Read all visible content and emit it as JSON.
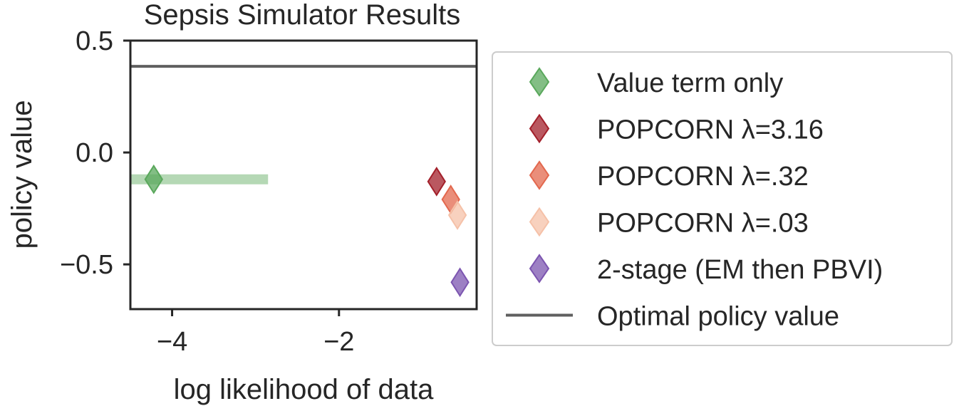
{
  "chart_data": {
    "type": "scatter",
    "title": "Sepsis Simulator Results",
    "xlabel": "log likelihood of data",
    "ylabel": "policy value",
    "xlim": [
      -4.5,
      -0.35
    ],
    "ylim": [
      -0.7,
      0.5
    ],
    "xticks": [
      {
        "value": -4,
        "label": "−4"
      },
      {
        "value": -2,
        "label": "−2"
      }
    ],
    "yticks": [
      {
        "value": 0.5,
        "label": "0.5"
      },
      {
        "value": 0.0,
        "label": "0.0"
      },
      {
        "value": -0.5,
        "label": "−0.5"
      }
    ],
    "grid": false,
    "legend_position": "right",
    "series": [
      {
        "name": "Value term only",
        "color": "#5aa85c",
        "marker": "diamond",
        "points": [
          {
            "x": -4.22,
            "y": -0.12
          }
        ],
        "x_interval": [
          -4.5,
          -2.85
        ]
      },
      {
        "name": "POPCORN λ=3.16",
        "color": "#a3202b",
        "marker": "diamond",
        "points": [
          {
            "x": -0.83,
            "y": -0.13
          }
        ]
      },
      {
        "name": "POPCORN λ=.32",
        "color": "#e3684e",
        "marker": "diamond",
        "points": [
          {
            "x": -0.66,
            "y": -0.21
          }
        ]
      },
      {
        "name": "POPCORN λ=.03",
        "color": "#f5c1a8",
        "marker": "diamond",
        "points": [
          {
            "x": -0.58,
            "y": -0.28
          }
        ]
      },
      {
        "name": "2-stage (EM then PBVI)",
        "color": "#7c55b0",
        "marker": "diamond",
        "points": [
          {
            "x": -0.55,
            "y": -0.58
          }
        ]
      }
    ],
    "reference_lines": [
      {
        "name": "Optimal policy value",
        "color": "#5f5f5f",
        "y": 0.385
      }
    ]
  }
}
